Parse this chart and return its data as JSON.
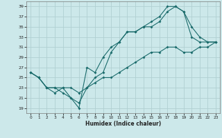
{
  "xlabel": "Humidex (Indice chaleur)",
  "xlim": [
    -0.5,
    23.5
  ],
  "ylim": [
    18,
    40
  ],
  "xticks": [
    0,
    1,
    2,
    3,
    4,
    5,
    6,
    7,
    8,
    9,
    10,
    11,
    12,
    13,
    14,
    15,
    16,
    17,
    18,
    19,
    20,
    21,
    22,
    23
  ],
  "yticks": [
    19,
    21,
    23,
    25,
    27,
    29,
    31,
    33,
    35,
    37,
    39
  ],
  "bg_color": "#cce8ea",
  "grid_color": "#b0d0d2",
  "line_color": "#1a6b6b",
  "line1_x": [
    0,
    1,
    2,
    3,
    4,
    5,
    6,
    7,
    8,
    9,
    10,
    11,
    12,
    13,
    14,
    15,
    16,
    17,
    18,
    19,
    20,
    21,
    22,
    23
  ],
  "line1_y": [
    26,
    25,
    23,
    23,
    22,
    21,
    19,
    27,
    26,
    29,
    31,
    32,
    34,
    34,
    35,
    36,
    37,
    39,
    39,
    38,
    35,
    33,
    32,
    32
  ],
  "line2_x": [
    0,
    1,
    2,
    3,
    4,
    5,
    6,
    7,
    8,
    9,
    10,
    11,
    12,
    13,
    14,
    15,
    16,
    17,
    18,
    19,
    20,
    21,
    22,
    23
  ],
  "line2_y": [
    26,
    25,
    23,
    22,
    23,
    21,
    20,
    23,
    25,
    26,
    30,
    32,
    34,
    34,
    35,
    35,
    36,
    38,
    39,
    38,
    33,
    32,
    32,
    32
  ],
  "line3_x": [
    0,
    1,
    2,
    3,
    4,
    5,
    6,
    7,
    8,
    9,
    10,
    11,
    12,
    13,
    14,
    15,
    16,
    17,
    18,
    19,
    20,
    21,
    22,
    23
  ],
  "line3_y": [
    26,
    25,
    23,
    23,
    23,
    23,
    22,
    23,
    24,
    25,
    25,
    26,
    27,
    28,
    29,
    30,
    30,
    31,
    31,
    30,
    30,
    31,
    31,
    32
  ]
}
